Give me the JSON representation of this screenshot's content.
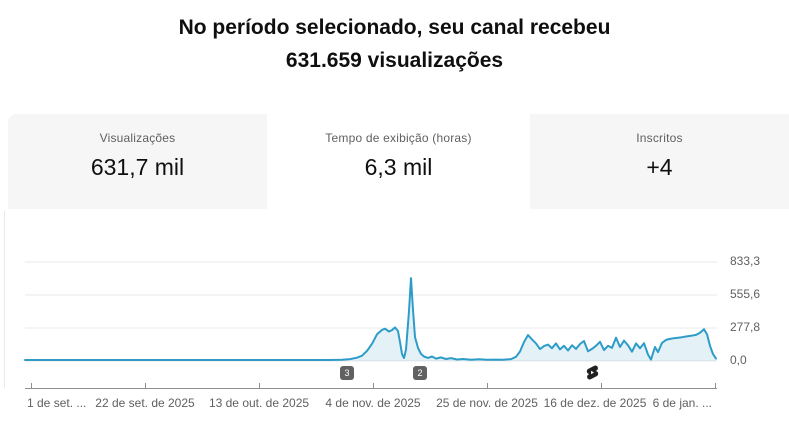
{
  "title": {
    "line1": "No período selecionado, seu canal recebeu",
    "line2": "631.659 visualizações"
  },
  "tabs": [
    {
      "label": "Visualizações",
      "value": "631,7 mil",
      "selected": false
    },
    {
      "label": "Tempo de exibição (horas)",
      "value": "6,3 mil",
      "selected": true
    },
    {
      "label": "Inscritos",
      "value": "+4",
      "selected": false
    }
  ],
  "chart_data": {
    "type": "area",
    "metric": "Tempo de exibição (horas)",
    "y_ticks": [
      "833,3",
      "555,6",
      "277,8",
      "0,0"
    ],
    "y_max": 833.3,
    "x_ticks": [
      "1 de set. ...",
      "22 de set. de 2025",
      "13 de out. de 2025",
      "4 de nov. de 2025",
      "25 de nov. de 2025",
      "16 de dez. de 2025",
      "6 de jan. ..."
    ],
    "grid": true,
    "legend": "none",
    "line_color": "#2d9cc8",
    "fill_color": "rgba(45,156,200,0.13)",
    "points": [
      [
        25,
        8
      ],
      [
        70,
        8
      ],
      [
        115,
        8
      ],
      [
        160,
        8
      ],
      [
        205,
        8
      ],
      [
        250,
        8
      ],
      [
        295,
        8
      ],
      [
        330,
        8
      ],
      [
        342,
        10
      ],
      [
        350,
        16
      ],
      [
        357,
        28
      ],
      [
        362,
        45
      ],
      [
        367,
        85
      ],
      [
        372,
        145
      ],
      [
        377,
        225
      ],
      [
        382,
        262
      ],
      [
        385,
        272
      ],
      [
        389,
        248
      ],
      [
        392,
        260
      ],
      [
        395,
        283
      ],
      [
        398,
        252
      ],
      [
        400,
        160
      ],
      [
        402,
        60
      ],
      [
        404,
        25
      ],
      [
        406,
        95
      ],
      [
        409,
        420
      ],
      [
        411,
        698
      ],
      [
        413,
        430
      ],
      [
        415,
        200
      ],
      [
        418,
        110
      ],
      [
        421,
        60
      ],
      [
        424,
        38
      ],
      [
        428,
        26
      ],
      [
        432,
        38
      ],
      [
        436,
        20
      ],
      [
        441,
        30
      ],
      [
        446,
        17
      ],
      [
        451,
        24
      ],
      [
        457,
        13
      ],
      [
        463,
        17
      ],
      [
        471,
        11
      ],
      [
        479,
        14
      ],
      [
        487,
        10
      ],
      [
        495,
        12
      ],
      [
        503,
        10
      ],
      [
        511,
        16
      ],
      [
        516,
        35
      ],
      [
        520,
        80
      ],
      [
        524,
        160
      ],
      [
        528,
        218
      ],
      [
        532,
        182
      ],
      [
        536,
        148
      ],
      [
        540,
        100
      ],
      [
        544,
        125
      ],
      [
        548,
        138
      ],
      [
        552,
        108
      ],
      [
        556,
        148
      ],
      [
        560,
        98
      ],
      [
        564,
        128
      ],
      [
        568,
        88
      ],
      [
        572,
        132
      ],
      [
        576,
        102
      ],
      [
        580,
        143
      ],
      [
        584,
        168
      ],
      [
        588,
        82
      ],
      [
        592,
        102
      ],
      [
        596,
        128
      ],
      [
        600,
        162
      ],
      [
        604,
        92
      ],
      [
        608,
        128
      ],
      [
        612,
        110
      ],
      [
        616,
        196
      ],
      [
        620,
        118
      ],
      [
        624,
        172
      ],
      [
        628,
        132
      ],
      [
        632,
        78
      ],
      [
        636,
        148
      ],
      [
        640,
        108
      ],
      [
        644,
        150
      ],
      [
        648,
        55
      ],
      [
        651,
        12
      ],
      [
        655,
        118
      ],
      [
        658,
        75
      ],
      [
        662,
        152
      ],
      [
        666,
        178
      ],
      [
        670,
        186
      ],
      [
        674,
        192
      ],
      [
        678,
        196
      ],
      [
        682,
        200
      ],
      [
        686,
        206
      ],
      [
        691,
        212
      ],
      [
        696,
        220
      ],
      [
        700,
        238
      ],
      [
        704,
        268
      ],
      [
        707,
        225
      ],
      [
        710,
        128
      ],
      [
        713,
        58
      ],
      [
        716,
        20
      ]
    ],
    "markers": [
      {
        "label": "3",
        "x": 340
      },
      {
        "label": "2",
        "x": 413
      }
    ],
    "shorts_marker": {
      "x": 584
    }
  }
}
